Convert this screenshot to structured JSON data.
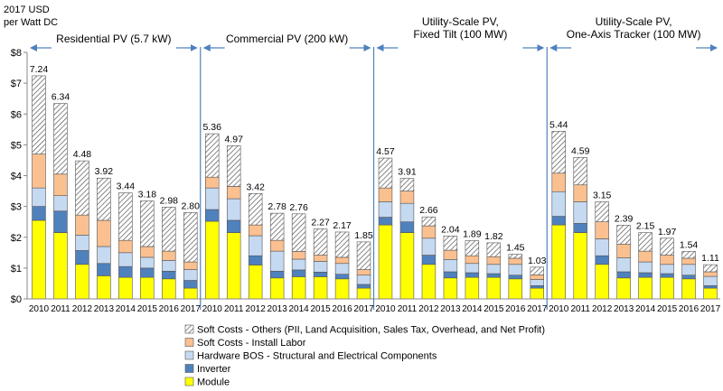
{
  "chart_data": {
    "type": "bar",
    "stacked": true,
    "yunit": [
      "2017 USD",
      "per Watt DC"
    ],
    "ylim": [
      0,
      8
    ],
    "yticks": [
      "$0",
      "$1",
      "$2",
      "$3",
      "$4",
      "$5",
      "$6",
      "$7",
      "$8"
    ],
    "colors": {
      "module": "#ffff00",
      "inverter": "#4f81bd",
      "hardware": "#c5d9f1",
      "labor": "#fac090",
      "others": "hatch",
      "arrow": "#4f81bd"
    },
    "legend": [
      {
        "key": "others",
        "label": "Soft Costs - Others (PII, Land Acquisition, Sales Tax, Overhead, and Net Profit)"
      },
      {
        "key": "labor",
        "label": "Soft Costs - Install Labor"
      },
      {
        "key": "hardware",
        "label": "Hardware BOS - Structural and Electrical Components"
      },
      {
        "key": "inverter",
        "label": "Inverter"
      },
      {
        "key": "module",
        "label": "Module"
      }
    ],
    "segments": [
      {
        "label_lines": [
          "Residential PV (5.7 kW)"
        ],
        "years": [
          "2010",
          "2011",
          "2012",
          "2013",
          "2014",
          "2015",
          "2016",
          "2017"
        ],
        "totals": [
          "7.24",
          "6.34",
          "4.48",
          "3.92",
          "3.44",
          "3.18",
          "2.98",
          "2.80"
        ],
        "stacks": [
          [
            2.55,
            0.45,
            0.6,
            1.1,
            2.54
          ],
          [
            2.15,
            0.7,
            0.5,
            0.7,
            2.29
          ],
          [
            1.12,
            0.45,
            0.5,
            0.65,
            1.76
          ],
          [
            0.75,
            0.4,
            0.55,
            0.85,
            1.37
          ],
          [
            0.7,
            0.35,
            0.45,
            0.4,
            1.54
          ],
          [
            0.7,
            0.3,
            0.35,
            0.35,
            1.48
          ],
          [
            0.65,
            0.25,
            0.35,
            0.3,
            1.43
          ],
          [
            0.35,
            0.25,
            0.35,
            0.25,
            1.6
          ]
        ]
      },
      {
        "label_lines": [
          "Commercial PV (200 kW)"
        ],
        "years": [
          "2010",
          "2011",
          "2012",
          "2013",
          "2014",
          "2015",
          "2016",
          "2017"
        ],
        "totals": [
          "5.36",
          "4.97",
          "3.42",
          "2.78",
          "2.76",
          "2.27",
          "2.17",
          "1.85"
        ],
        "stacks": [
          [
            2.52,
            0.38,
            0.7,
            0.35,
            1.41
          ],
          [
            2.15,
            0.4,
            0.7,
            0.4,
            1.32
          ],
          [
            1.1,
            0.3,
            0.65,
            0.35,
            1.02
          ],
          [
            0.68,
            0.22,
            0.65,
            0.35,
            0.88
          ],
          [
            0.72,
            0.22,
            0.35,
            0.25,
            1.22
          ],
          [
            0.72,
            0.15,
            0.35,
            0.2,
            0.85
          ],
          [
            0.65,
            0.15,
            0.35,
            0.2,
            0.82
          ],
          [
            0.35,
            0.12,
            0.3,
            0.18,
            0.9
          ]
        ]
      },
      {
        "label_lines": [
          "Utility-Scale PV,",
          "Fixed Tilt (100 MW)"
        ],
        "years": [
          "2010",
          "2011",
          "2012",
          "2013",
          "2014",
          "2015",
          "2016",
          "2017"
        ],
        "totals": [
          "4.57",
          "3.91",
          "2.66",
          "2.04",
          "1.89",
          "1.82",
          "1.45",
          "1.03"
        ],
        "stacks": [
          [
            2.4,
            0.25,
            0.5,
            0.45,
            0.97
          ],
          [
            2.15,
            0.35,
            0.6,
            0.4,
            0.41
          ],
          [
            1.12,
            0.3,
            0.55,
            0.4,
            0.29
          ],
          [
            0.68,
            0.2,
            0.4,
            0.3,
            0.46
          ],
          [
            0.7,
            0.15,
            0.3,
            0.25,
            0.49
          ],
          [
            0.7,
            0.12,
            0.3,
            0.25,
            0.45
          ],
          [
            0.65,
            0.12,
            0.35,
            0.2,
            0.13
          ],
          [
            0.35,
            0.08,
            0.2,
            0.15,
            0.25
          ]
        ]
      },
      {
        "label_lines": [
          "Utility-Scale PV,",
          "One-Axis Tracker (100 MW)"
        ],
        "years": [
          "2010",
          "2011",
          "2012",
          "2013",
          "2014",
          "2015",
          "2016",
          "2017"
        ],
        "totals": [
          "5.44",
          "4.59",
          "3.15",
          "2.39",
          "2.15",
          "1.97",
          "1.54",
          "1.11"
        ],
        "stacks": [
          [
            2.4,
            0.28,
            0.8,
            0.6,
            1.36
          ],
          [
            2.15,
            0.3,
            0.7,
            0.55,
            0.89
          ],
          [
            1.12,
            0.28,
            0.55,
            0.55,
            0.65
          ],
          [
            0.68,
            0.2,
            0.45,
            0.45,
            0.61
          ],
          [
            0.7,
            0.15,
            0.35,
            0.35,
            0.6
          ],
          [
            0.7,
            0.12,
            0.3,
            0.3,
            0.55
          ],
          [
            0.65,
            0.12,
            0.35,
            0.2,
            0.22
          ],
          [
            0.35,
            0.08,
            0.3,
            0.15,
            0.23
          ]
        ]
      }
    ]
  }
}
